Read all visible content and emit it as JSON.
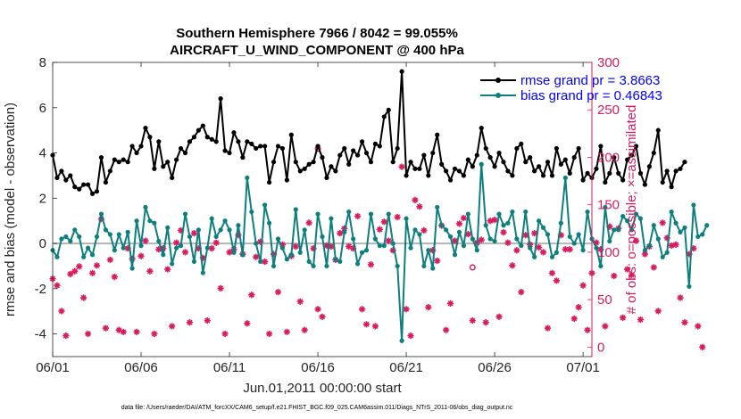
{
  "chart_data": {
    "type": "line",
    "title": "Southern Hemisphere 7966 / 8042 = 99.055%",
    "subtitle": "AIRCRAFT_U_WIND_COMPONENT @ 400 hPa",
    "xlabel": "Jun.01,2011 00:00:00 start",
    "ylabel": "rmse and bias (model - observation)",
    "y2label": "# of obs: o=possible; ×=assimilated",
    "footnote": "data file: /Users/raeder/DAI/ATM_forcXX/CAM6_setup/f.e21.FHIST_BGC.f09_025.CAM6assim.011/Diags_NTrS_2011-06/obs_diag_output.nc",
    "xlim": [
      0,
      30.5
    ],
    "ylim": [
      -5,
      8
    ],
    "y2lim": [
      -10,
      300
    ],
    "x_ticks": [
      0,
      5,
      10,
      15,
      20,
      25,
      30
    ],
    "x_tick_labels": [
      "06/01",
      "06/06",
      "06/11",
      "06/16",
      "06/21",
      "06/26",
      "07/01"
    ],
    "y_ticks": [
      -4,
      -2,
      0,
      2,
      4,
      6,
      8
    ],
    "y_tick_labels": [
      "-4",
      "-2",
      "0",
      "2",
      "4",
      "6",
      "8"
    ],
    "y2_ticks": [
      0,
      50,
      100,
      150,
      200,
      250,
      300
    ],
    "y2_tick_labels": [
      "0",
      "50",
      "100",
      "150",
      "200",
      "250",
      "300"
    ],
    "zero_line": 0,
    "legend_position": "top-right",
    "colors": {
      "rmse": "#000000",
      "bias": "#0e7f7f",
      "obs": "#d81b60",
      "zero": "#b4b4b4",
      "legend_text": "#0000ff",
      "axis_right": "#d81b60"
    },
    "series": [
      {
        "name": "rmse grand pr = 3.8663",
        "x_start": 0,
        "x_step": 0.25,
        "values": [
          3.9,
          2.9,
          3.2,
          2.8,
          3.0,
          2.5,
          2.4,
          2.6,
          2.6,
          2.2,
          2.3,
          3.8,
          2.7,
          3.2,
          3.7,
          3.6,
          3.7,
          3.6,
          4.3,
          4.0,
          4.3,
          5.1,
          4.7,
          3.3,
          4.5,
          3.4,
          3.6,
          2.9,
          3.7,
          4.2,
          4.0,
          4.5,
          4.7,
          5.0,
          5.2,
          4.7,
          4.6,
          4.5,
          6.4,
          4.1,
          4.0,
          4.9,
          4.5,
          3.8,
          4.5,
          4.4,
          4.2,
          4.3,
          4.3,
          2.7,
          3.6,
          4.3,
          4.2,
          2.8,
          4.8,
          3.6,
          3.2,
          3.3,
          3.5,
          3.6,
          4.3,
          3.8,
          2.9,
          3.4,
          3.2,
          3.9,
          4.2,
          3.5,
          4.1,
          3.9,
          4.5,
          4.0,
          3.6,
          4.4,
          4.3,
          5.6,
          5.9,
          3.6,
          4.2,
          7.6,
          3.0,
          3.6,
          3.3,
          3.3,
          3.9,
          3.0,
          4.0,
          4.8,
          3.5,
          3.2,
          2.8,
          3.3,
          3.2,
          3.0,
          3.7,
          3.4,
          3.9,
          5.1,
          4.2,
          3.8,
          3.4,
          4.0,
          3.6,
          3.2,
          3.0,
          4.2,
          4.4,
          3.6,
          3.8,
          3.2,
          3.4,
          3.0,
          3.6,
          3.0,
          4.2,
          3.5,
          3.7,
          3.1,
          3.8,
          4.2,
          2.8,
          3.1,
          2.9,
          3.3,
          4.3,
          2.7,
          3.1,
          3.8,
          3.1,
          2.8,
          3.7,
          3.9,
          4.3,
          3.1,
          2.6,
          3.4,
          4.0,
          5.0,
          2.7,
          3.2,
          2.5,
          3.2,
          3.3,
          3.6
        ]
      },
      {
        "name": "bias grand pr = 0.46843",
        "x_start": 0,
        "x_step": 0.25,
        "values": [
          -0.3,
          -0.6,
          0.2,
          0.3,
          0.1,
          0.6,
          0.3,
          -0.6,
          -0.2,
          -0.5,
          0.3,
          1.3,
          0.6,
          0.4,
          -0.3,
          0.4,
          -0.2,
          0.5,
          -1.1,
          1.0,
          -0.1,
          1.6,
          1.0,
          0.9,
          0.1,
          -0.5,
          0.7,
          -0.9,
          -0.2,
          -0.1,
          1.3,
          0.3,
          -0.8,
          0.6,
          -1.3,
          -0.2,
          1.1,
          0.3,
          0.6,
          1.0,
          0.6,
          -0.4,
          0.8,
          -0.5,
          2.9,
          1.4,
          0.0,
          -0.8,
          1.7,
          0.9,
          -1.0,
          0.2,
          -0.2,
          -0.7,
          -0.5,
          1.5,
          -0.4,
          0.6,
          -0.8,
          -1.0,
          1.3,
          0.3,
          -1.0,
          1.1,
          -0.7,
          -0.8,
          0.5,
          1.4,
          0.2,
          -0.9,
          -0.4,
          -0.3,
          1.3,
          0.2,
          -0.1,
          -0.1,
          1.3,
          0.0,
          -1.0,
          -4.3,
          1.1,
          -0.2,
          0.6,
          0.4,
          -1.0,
          -0.3,
          -1.1,
          1.6,
          0.8,
          0.6,
          0.3,
          -0.5,
          0.5,
          -0.1,
          1.3,
          0.2,
          -0.3,
          3.5,
          0.8,
          0.2,
          0.1,
          1.3,
          0.8,
          0.9,
          1.4,
          0.2,
          -0.1,
          1.4,
          -0.2,
          -0.6,
          1.0,
          0.7,
          0.4,
          -0.6,
          -0.4,
          0.9,
          2.9,
          0.3,
          0.0,
          0.4,
          -0.3,
          1.4,
          0.2,
          -0.2,
          -1.0,
          1.6,
          0.1,
          0.6,
          0.6,
          1.2,
          1.0,
          0.6,
          1.3,
          1.1,
          -0.3,
          -0.1,
          0.8,
          0.2,
          -0.6,
          -0.4,
          1.4,
          0.9,
          0.5,
          0.7,
          -1.9,
          1.7,
          0.3,
          0.4,
          0.8
        ]
      }
    ],
    "obs_assimilated": {
      "name": "# of obs assimilated",
      "x_start": 0,
      "x_step": 0.25,
      "values": [
        72,
        65,
        38,
        12,
        77,
        80,
        85,
        52,
        14,
        78,
        86,
        135,
        20,
        92,
        74,
        18,
        16,
        104,
        93,
        16,
        96,
        112,
        80,
        14,
        103,
        104,
        82,
        22,
        110,
        123,
        100,
        26,
        120,
        104,
        94,
        28,
        104,
        110,
        62,
        14,
        100,
        103,
        118,
        98,
        25,
        55,
        95,
        111,
        90,
        14,
        98,
        58,
        108,
        16,
        96,
        106,
        48,
        18,
        131,
        104,
        40,
        32,
        107,
        106,
        92,
        120,
        125,
        106,
        104,
        138,
        40,
        24,
        87,
        22,
        124,
        132,
        112,
        102,
        137,
        190,
        40,
        12,
        155,
        148,
        123,
        42,
        102,
        91,
        128,
        18,
        46,
        112,
        130,
        136,
        119,
        28,
        110,
        113,
        26,
        133,
        134,
        32,
        121,
        110,
        86,
        102,
        58,
        118,
        108,
        120,
        105,
        100,
        20,
        78,
        70,
        118,
        103,
        103,
        30,
        42,
        65,
        18,
        78,
        110,
        103,
        22,
        127,
        75,
        125,
        31,
        82,
        76,
        112,
        29,
        98,
        106,
        84,
        38,
        131,
        115,
        107,
        108,
        52,
        26,
        98,
        104,
        22,
        0
      ]
    },
    "obs_possible": {
      "name": "# of obs possible",
      "x": [
        15.0,
        23.75
      ],
      "values": [
        209,
        84
      ]
    }
  }
}
